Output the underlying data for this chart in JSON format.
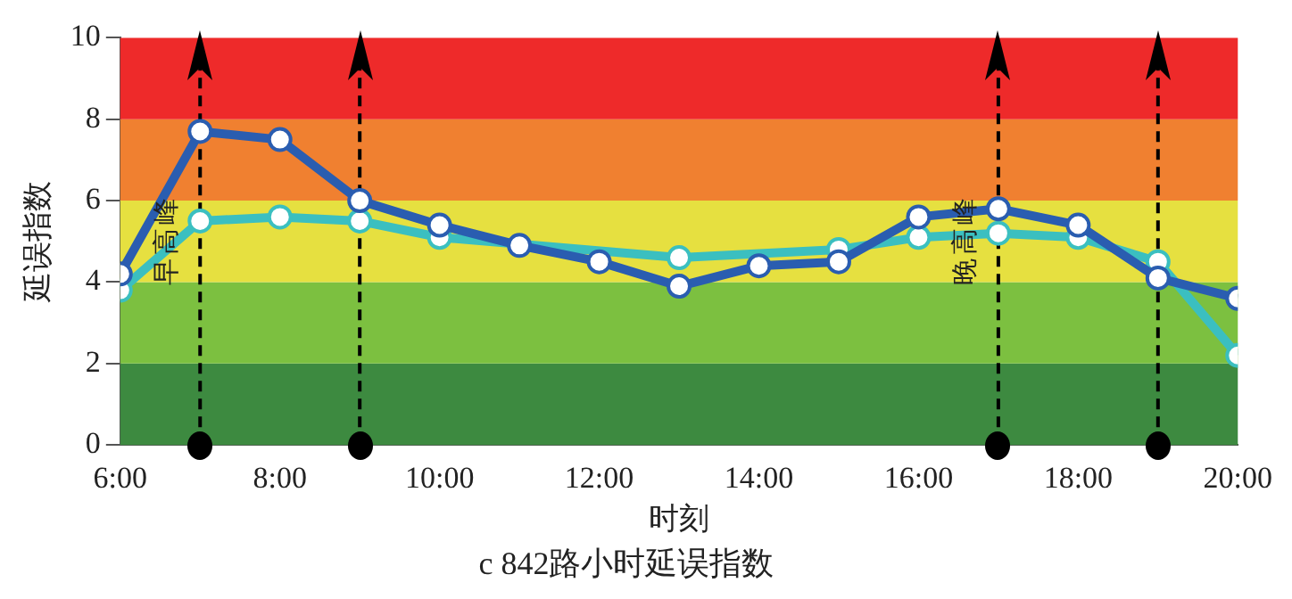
{
  "chart_data": {
    "type": "line",
    "title": "c 842路小时延误指数",
    "xlabel": "时刻",
    "ylabel": "延误指数",
    "x": [
      6,
      7,
      8,
      9,
      10,
      11,
      12,
      13,
      14,
      15,
      16,
      17,
      18,
      19,
      20
    ],
    "series": [
      {
        "color": "#2a5db0",
        "values": [
          4.2,
          7.7,
          7.5,
          6.0,
          5.4,
          4.9,
          4.5,
          3.9,
          4.4,
          4.5,
          5.6,
          5.8,
          5.4,
          4.1,
          3.6
        ]
      },
      {
        "color": "#3bbfc0",
        "values": [
          3.8,
          5.5,
          5.6,
          5.5,
          5.1,
          null,
          null,
          4.6,
          null,
          4.8,
          5.1,
          5.2,
          5.1,
          4.5,
          2.2
        ]
      }
    ],
    "xlim": [
      6,
      20
    ],
    "xticks": [
      {
        "value": 6,
        "label": "6:00"
      },
      {
        "value": 8,
        "label": "8:00"
      },
      {
        "value": 10,
        "label": "10:00"
      },
      {
        "value": 12,
        "label": "12:00"
      },
      {
        "value": 14,
        "label": "14:00"
      },
      {
        "value": 16,
        "label": "16:00"
      },
      {
        "value": 18,
        "label": "18:00"
      },
      {
        "value": 20,
        "label": "20:00"
      }
    ],
    "ylim": [
      0,
      10
    ],
    "yticks": [
      0,
      2,
      4,
      6,
      8,
      10
    ],
    "bands": [
      {
        "axis": "y",
        "from": 0,
        "to": 2,
        "color": "#3d8a40"
      },
      {
        "axis": "y",
        "from": 2,
        "to": 4,
        "color": "#7cc040"
      },
      {
        "axis": "y",
        "from": 4,
        "to": 6,
        "color": "#e6e040"
      },
      {
        "axis": "y",
        "from": 6,
        "to": 8,
        "color": "#f08030"
      },
      {
        "axis": "y",
        "from": 8,
        "to": 10,
        "color": "#ee2a2a"
      }
    ],
    "ref_lines": [
      {
        "axis": "x",
        "value": 7,
        "color": "#000000",
        "line_style": "dashed"
      },
      {
        "axis": "x",
        "value": 9,
        "color": "#000000",
        "line_style": "dashed"
      },
      {
        "axis": "x",
        "value": 17,
        "color": "#000000",
        "line_style": "dashed"
      },
      {
        "axis": "x",
        "value": 19,
        "color": "#000000",
        "line_style": "dashed"
      }
    ],
    "annotations": [
      {
        "text": "早高峰",
        "x": 6.6,
        "y": 5
      },
      {
        "text": "晚高峰",
        "x": 16.6,
        "y": 5
      }
    ],
    "marker": "circle",
    "line_style": "solid",
    "grid": false,
    "legend": false
  }
}
